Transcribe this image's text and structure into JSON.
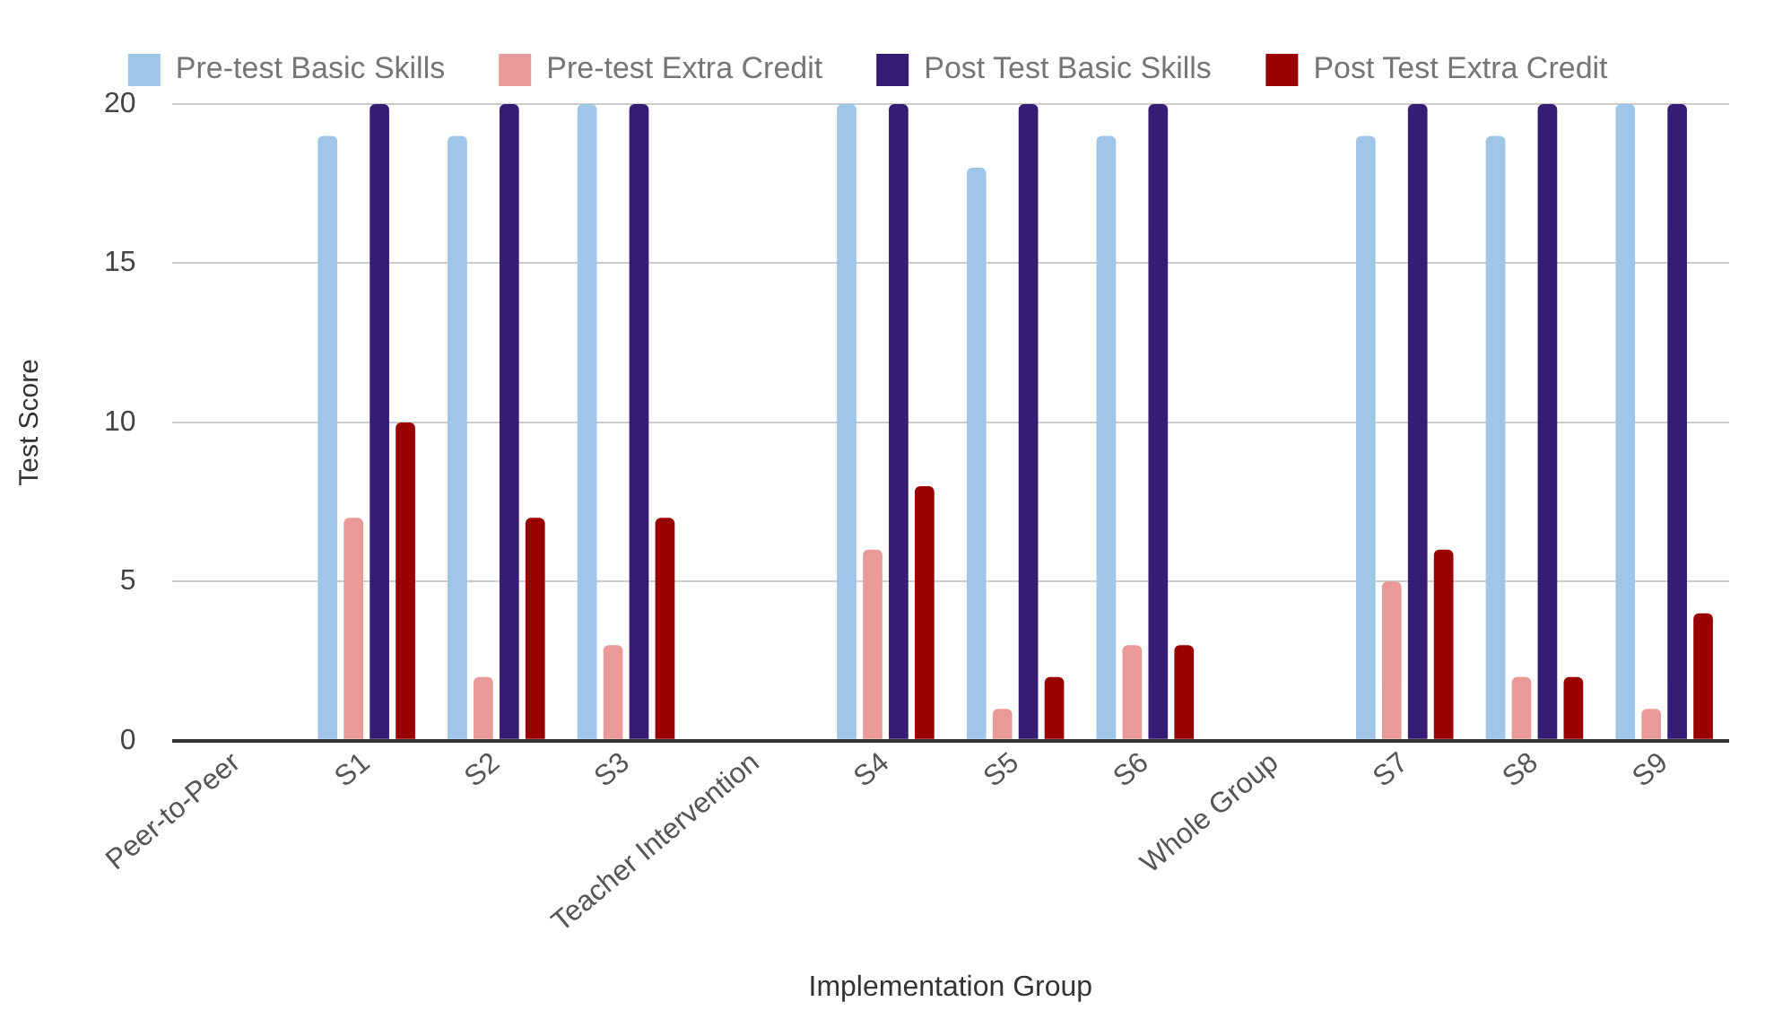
{
  "chart_data": {
    "type": "bar",
    "xlabel": "Implementation Group",
    "ylabel": "Test Score",
    "categories": [
      "Peer-to-Peer",
      "S1",
      "S2",
      "S3",
      "Teacher Intervention",
      "S4",
      "S5",
      "S6",
      "Whole Group",
      "S7",
      "S8",
      "S9"
    ],
    "series": [
      {
        "name": "Pre-test Basic Skills",
        "color": "#9fc5e8",
        "values": [
          null,
          19,
          19,
          20,
          null,
          20,
          18,
          19,
          null,
          19,
          19,
          20
        ]
      },
      {
        "name": "Pre-test Extra Credit",
        "color": "#ea9999",
        "values": [
          null,
          7,
          2,
          3,
          null,
          6,
          1,
          3,
          null,
          5,
          2,
          1
        ]
      },
      {
        "name": "Post Test Basic Skills",
        "color": "#351c75",
        "values": [
          null,
          20,
          20,
          20,
          null,
          20,
          20,
          20,
          null,
          20,
          20,
          20
        ]
      },
      {
        "name": "Post Test Extra Credit",
        "color": "#990000",
        "values": [
          null,
          10,
          7,
          7,
          null,
          8,
          2,
          3,
          null,
          6,
          2,
          4
        ]
      }
    ],
    "ylim": [
      0,
      20
    ],
    "yticks": [
      0,
      5,
      10,
      15,
      20
    ],
    "grid": "y",
    "legend": "top"
  }
}
